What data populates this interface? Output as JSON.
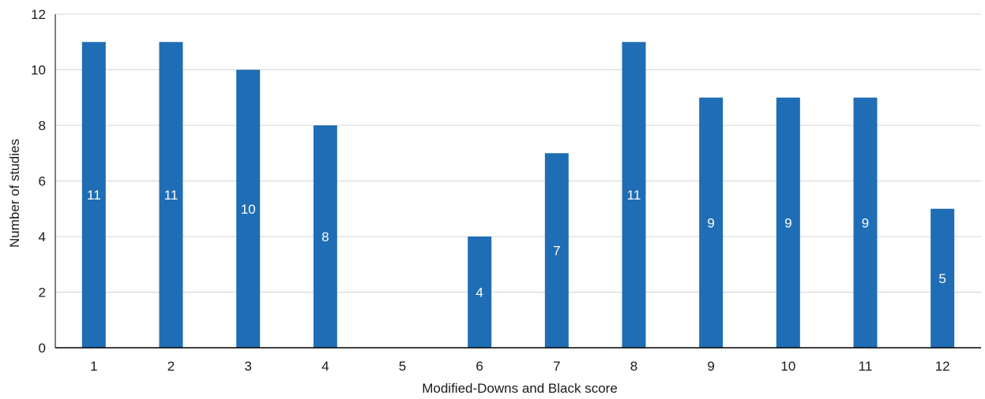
{
  "chart_data": {
    "type": "bar",
    "title": "",
    "xlabel": "Modified-Downs and Black score",
    "ylabel": "Number of studies",
    "categories": [
      "1",
      "2",
      "3",
      "4",
      "5",
      "6",
      "7",
      "8",
      "9",
      "10",
      "11",
      "12"
    ],
    "series": [
      {
        "values": [
          11,
          11,
          10,
          8,
          0,
          4,
          7,
          11,
          9,
          9,
          9,
          5
        ],
        "data_labels": [
          "11",
          "11",
          "10",
          "8",
          "",
          "4",
          "7",
          "11",
          "9",
          "9",
          "9",
          "5"
        ]
      }
    ],
    "ylim": [
      0,
      12
    ],
    "yticks": [
      0,
      2,
      4,
      6,
      8,
      10,
      12
    ],
    "grid": true,
    "legend": "none",
    "colors": {
      "bar": "#1f6db5",
      "grid": "#d4d4d4",
      "axis": "#000000",
      "label_text": "#ffffff"
    }
  }
}
